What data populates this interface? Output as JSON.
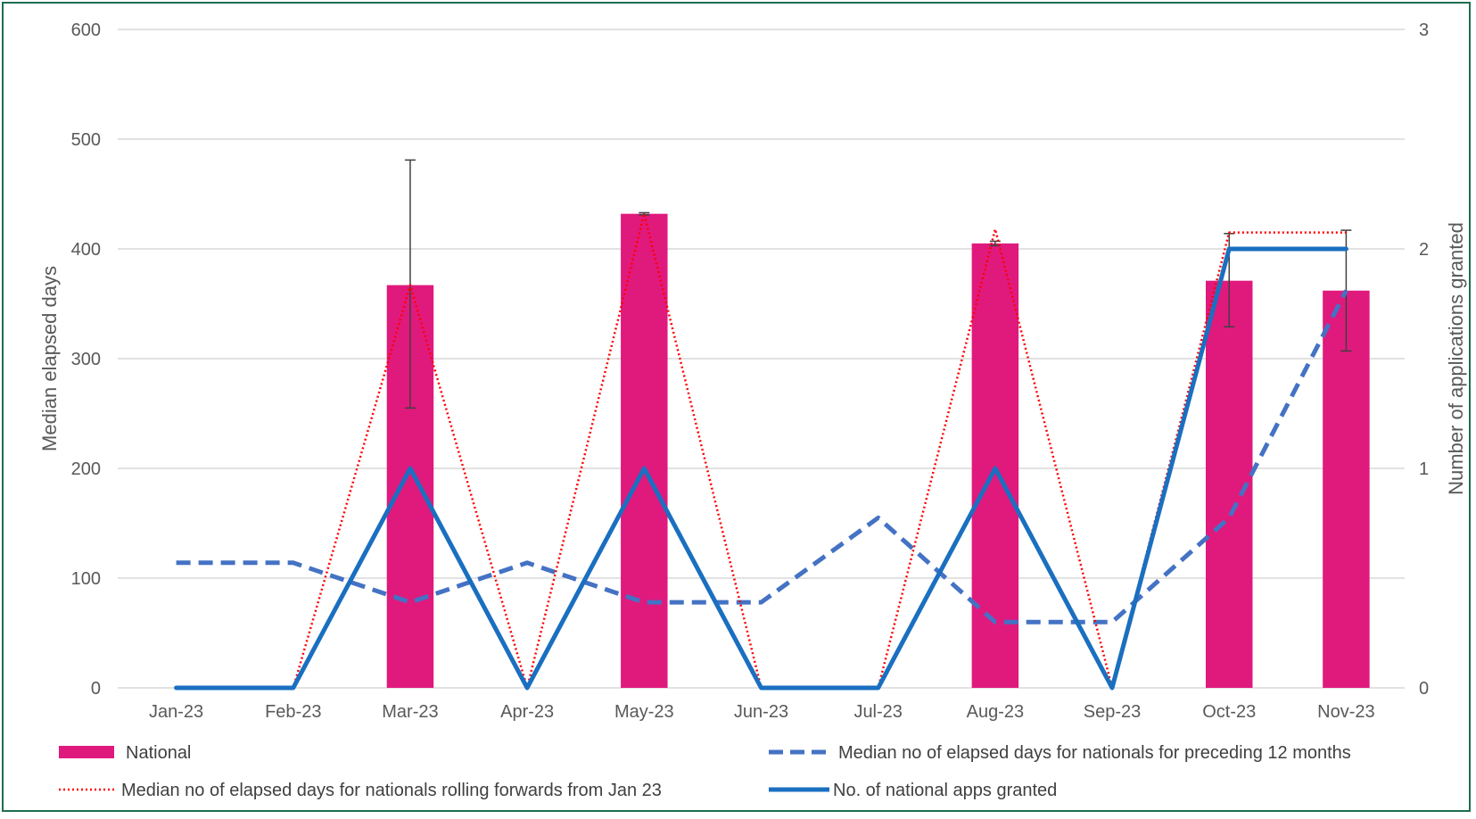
{
  "chart_data": {
    "type": "bar",
    "categories": [
      "Jan-23",
      "Feb-23",
      "Mar-23",
      "Apr-23",
      "May-23",
      "Jun-23",
      "Jul-23",
      "Aug-23",
      "Sep-23",
      "Oct-23",
      "Nov-23"
    ],
    "ylabel": "Median elapsed days",
    "y2label": "Number of applications granted",
    "ylim": [
      0,
      600
    ],
    "y2lim": [
      0,
      3
    ],
    "yticks": [
      "0",
      "100",
      "200",
      "300",
      "400",
      "500",
      "600"
    ],
    "y2ticks": [
      "0",
      "1",
      "2",
      "3"
    ],
    "grid": true,
    "legend_position": "bottom",
    "series": [
      {
        "name": "National",
        "type": "bar",
        "axis": "left",
        "color": "#e0197d",
        "values": [
          null,
          null,
          367,
          null,
          432,
          null,
          null,
          405,
          null,
          371,
          362
        ],
        "error_low": [
          null,
          null,
          255,
          null,
          431,
          null,
          null,
          403,
          null,
          329,
          307
        ],
        "error_high": [
          null,
          null,
          481,
          null,
          433,
          null,
          null,
          407,
          null,
          414,
          417
        ]
      },
      {
        "name": "Median no of elapsed days for nationals for preceding 12 months",
        "type": "line",
        "style": "dashed",
        "axis": "left",
        "color": "#4472c4",
        "values": [
          114,
          114,
          78,
          114,
          78,
          78,
          155,
          60,
          60,
          155,
          362
        ]
      },
      {
        "name": "Median no of elapsed days for nationals rolling forwards from Jan 23",
        "type": "line",
        "style": "dotted",
        "axis": "left",
        "color": "#ff0000",
        "values": [
          0,
          0,
          367,
          0,
          432,
          0,
          0,
          418,
          0,
          415,
          415
        ]
      },
      {
        "name": "No. of national apps granted",
        "type": "line",
        "style": "solid",
        "axis": "right",
        "color": "#1a6fc0",
        "values": [
          0,
          0,
          1,
          0,
          1,
          0,
          0,
          1,
          0,
          2,
          2
        ]
      }
    ]
  }
}
